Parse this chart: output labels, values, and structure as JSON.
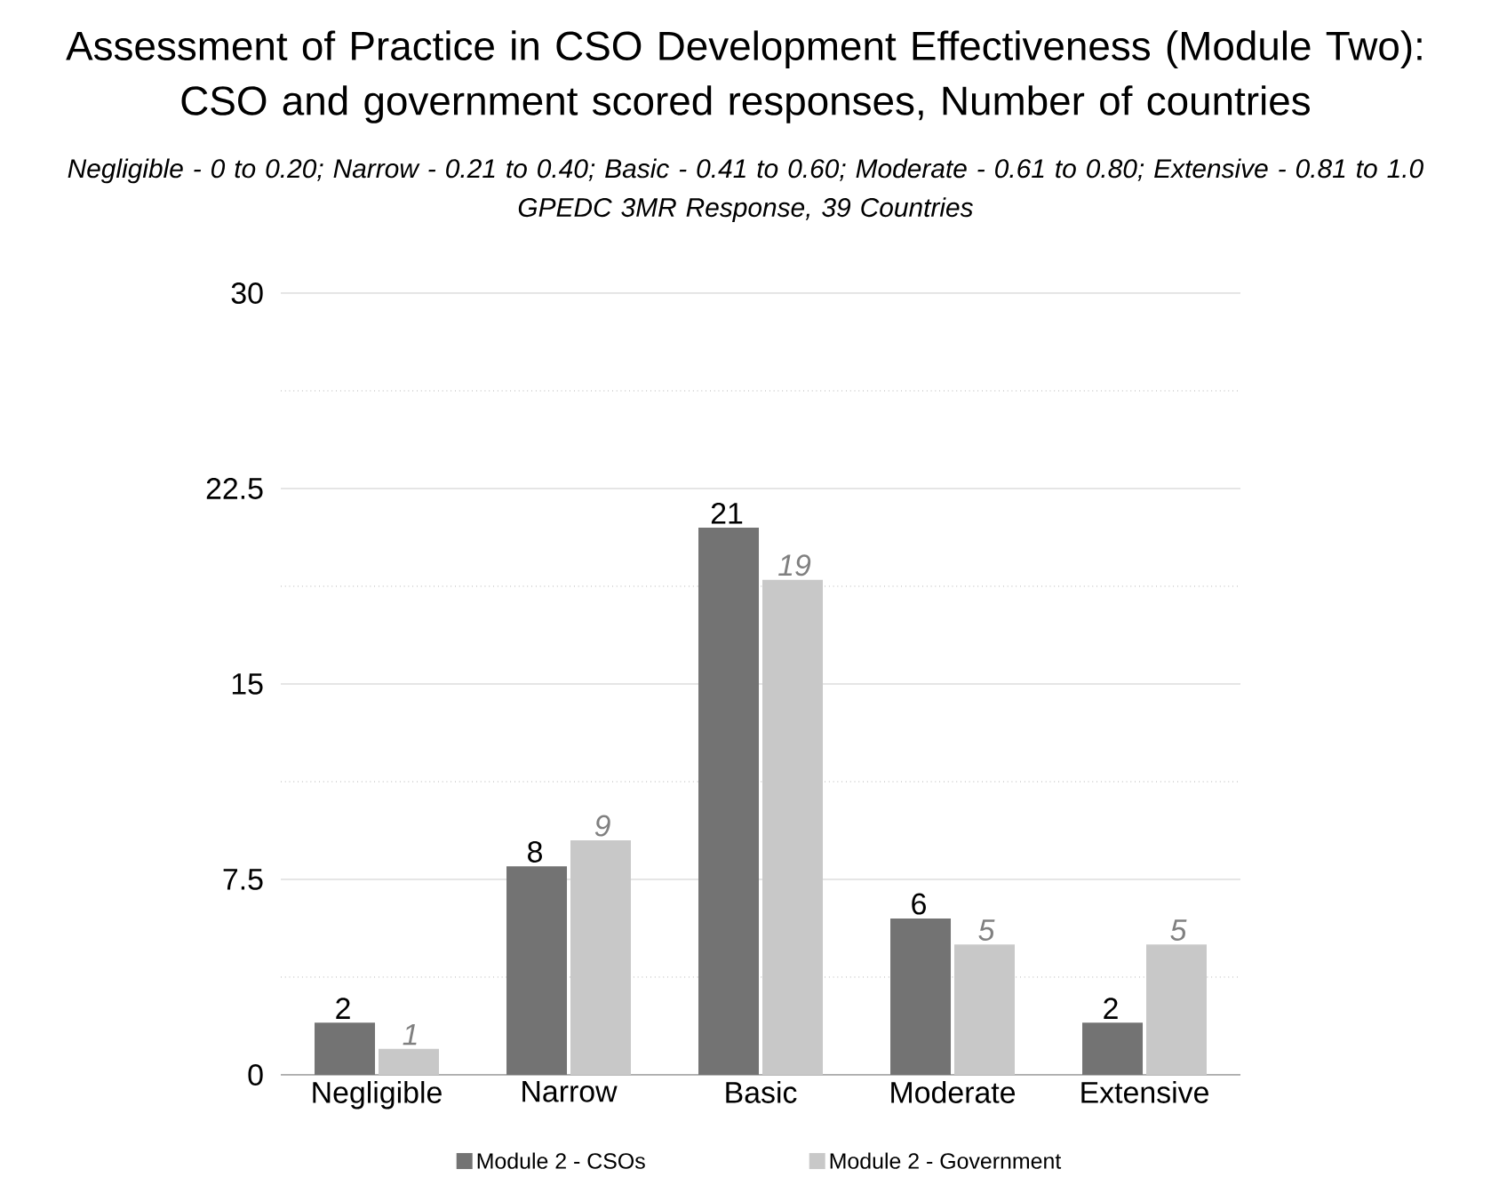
{
  "chart_data": {
    "type": "bar",
    "title": "Assessment of Practice in CSO Development Effectiveness (Module Two):\nCSO and government scored responses, Number of countries",
    "subtitle": "Negligible - 0 to 0.20; Narrow - 0.21 to 0.40; Basic - 0.41 to 0.60; Moderate - 0.61 to 0.80; Extensive - 0.81 to 1.0\nGPEDC 3MR Response, 39 Countries",
    "categories": [
      "Negligible",
      "Narrow",
      "Basic",
      "Moderate",
      "Extensive"
    ],
    "series": [
      {
        "name": "Module 2 - CSOs",
        "color": "#737373",
        "values": [
          2,
          8,
          21,
          6,
          2
        ]
      },
      {
        "name": "Module 2 - Government",
        "color": "#c8c8c8",
        "values": [
          1,
          9,
          19,
          5,
          5
        ]
      }
    ],
    "ylim": [
      0,
      30
    ],
    "yticks": [
      0,
      7.5,
      15,
      22.5,
      30
    ],
    "grid": "y",
    "legend": "bottom",
    "data_labels": true
  }
}
